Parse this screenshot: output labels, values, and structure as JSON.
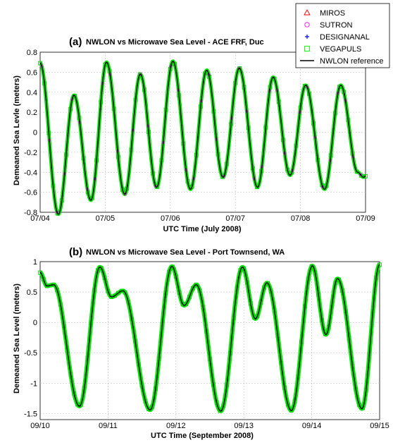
{
  "chart_data": [
    {
      "type": "line",
      "panel_label": "(a)",
      "title": "NWLON vs Microwave Sea Level - ACE FRF, Duc",
      "xlabel": "UTC Time (July 2008)",
      "ylabel": "Demeaned Sea Levle (meters)",
      "x_ticks": [
        "07/04",
        "07/05",
        "07/06",
        "07/07",
        "07/08",
        "07/09"
      ],
      "xlim": [
        "07/04",
        "07/09"
      ],
      "ylim": [
        -0.8,
        0.8
      ],
      "y_ticks": [
        "0.8",
        "0.6",
        "0.4",
        "0.2",
        "0",
        "-0.2",
        "-0.4",
        "-0.6",
        "-0.8"
      ],
      "grid": true,
      "legend": {
        "placement": "top-right",
        "entries": [
          {
            "label": "MIROS",
            "marker": "triangle",
            "color": "#ff0000"
          },
          {
            "label": "SUTRON",
            "marker": "circle",
            "color": "#ff00ff"
          },
          {
            "label": "DESIGNANAL",
            "marker": "plus",
            "color": "#0000ff"
          },
          {
            "label": "VEGAPULS",
            "marker": "square",
            "color": "#00ff00"
          },
          {
            "label": "NWLON reference",
            "marker": "line",
            "color": "#000000"
          }
        ]
      },
      "series_note": "all sensor series overlap the NWLON reference",
      "extrema": [
        {
          "t_days": 0.0,
          "v": 0.69
        },
        {
          "t_days": 0.28,
          "v": -0.82
        },
        {
          "t_days": 0.52,
          "v": 0.37
        },
        {
          "t_days": 0.78,
          "v": -0.68
        },
        {
          "t_days": 1.02,
          "v": 0.7
        },
        {
          "t_days": 1.3,
          "v": -0.62
        },
        {
          "t_days": 1.54,
          "v": 0.58
        },
        {
          "t_days": 1.79,
          "v": -0.55
        },
        {
          "t_days": 2.04,
          "v": 0.71
        },
        {
          "t_days": 2.31,
          "v": -0.57
        },
        {
          "t_days": 2.56,
          "v": 0.62
        },
        {
          "t_days": 2.81,
          "v": -0.45
        },
        {
          "t_days": 3.06,
          "v": 0.64
        },
        {
          "t_days": 3.34,
          "v": -0.55
        },
        {
          "t_days": 3.58,
          "v": 0.55
        },
        {
          "t_days": 3.84,
          "v": -0.43
        },
        {
          "t_days": 4.08,
          "v": 0.47
        },
        {
          "t_days": 4.37,
          "v": -0.57
        },
        {
          "t_days": 4.62,
          "v": 0.47
        },
        {
          "t_days": 4.88,
          "v": -0.4
        },
        {
          "t_days": 4.97,
          "v": -0.45
        },
        {
          "t_days": 5.0,
          "v": -0.44
        }
      ]
    },
    {
      "type": "line",
      "panel_label": "(b)",
      "title": "NWLON vs Microwave Sea Level - Port Townsend, WA",
      "xlabel": "UTC Time (September 2008)",
      "ylabel": "Demeaned Sea Level (meters)",
      "x_ticks": [
        "09/10",
        "09/11",
        "09/12",
        "09/13",
        "09/14",
        "09/15"
      ],
      "xlim": [
        "09/10",
        "09/15"
      ],
      "ylim": [
        -1.6,
        1.0
      ],
      "y_ticks": [
        "1",
        "0.5",
        "0",
        "-0.5",
        "-1",
        "-1.5"
      ],
      "grid": true,
      "series_note": "all sensor series overlap the NWLON reference",
      "extrema": [
        {
          "t_days": 0.0,
          "v": 0.82
        },
        {
          "t_days": 0.1,
          "v": 0.6
        },
        {
          "t_days": 0.2,
          "v": 0.62
        },
        {
          "t_days": 0.58,
          "v": -1.38
        },
        {
          "t_days": 0.88,
          "v": 0.91
        },
        {
          "t_days": 1.05,
          "v": 0.42
        },
        {
          "t_days": 1.22,
          "v": 0.52
        },
        {
          "t_days": 1.62,
          "v": -1.44
        },
        {
          "t_days": 1.94,
          "v": 0.92
        },
        {
          "t_days": 2.12,
          "v": 0.28
        },
        {
          "t_days": 2.3,
          "v": 0.62
        },
        {
          "t_days": 2.66,
          "v": -1.46
        },
        {
          "t_days": 2.98,
          "v": 0.91
        },
        {
          "t_days": 3.17,
          "v": 0.06
        },
        {
          "t_days": 3.34,
          "v": 0.65
        },
        {
          "t_days": 3.7,
          "v": -1.45
        },
        {
          "t_days": 4.01,
          "v": 0.93
        },
        {
          "t_days": 4.21,
          "v": -0.2
        },
        {
          "t_days": 4.38,
          "v": 0.72
        },
        {
          "t_days": 4.74,
          "v": -1.42
        },
        {
          "t_days": 5.0,
          "v": 0.95
        }
      ]
    }
  ]
}
